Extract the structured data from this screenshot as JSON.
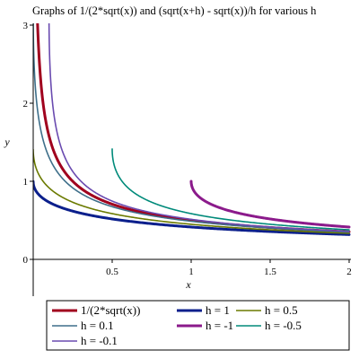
{
  "chart_data": {
    "type": "line",
    "title": "Graphs of 1/(2*sqrt(x)) and (sqrt(x+h) - sqrt(x))/h for various h",
    "xlabel": "x",
    "ylabel": "y",
    "xlim": [
      0,
      2
    ],
    "ylim": [
      0,
      3
    ],
    "x_ticks": [
      "0.5",
      "1",
      "1.5",
      "2"
    ],
    "y_ticks": [
      "0",
      "1",
      "2",
      "3"
    ],
    "grid": false,
    "legend_position": "bottom",
    "series": [
      {
        "name": "1/(2*sqrt(x))",
        "h": null,
        "color": "#a0001e",
        "width": 3
      },
      {
        "name": "h = 1",
        "h": 1,
        "color": "#0b1f8c",
        "width": 3
      },
      {
        "name": "h = 0.5",
        "h": 0.5,
        "color": "#6b7a00",
        "width": 1.6
      },
      {
        "name": "h = 0.1",
        "h": 0.1,
        "color": "#3e6f8a",
        "width": 1.6
      },
      {
        "name": "h = -1",
        "h": -1,
        "color": "#8b1a8b",
        "width": 3
      },
      {
        "name": "h = -0.5",
        "h": -0.5,
        "color": "#008a7a",
        "width": 1.6
      },
      {
        "name": "h = -0.1",
        "h": -0.1,
        "color": "#6a4bb0",
        "width": 1.6
      }
    ]
  }
}
